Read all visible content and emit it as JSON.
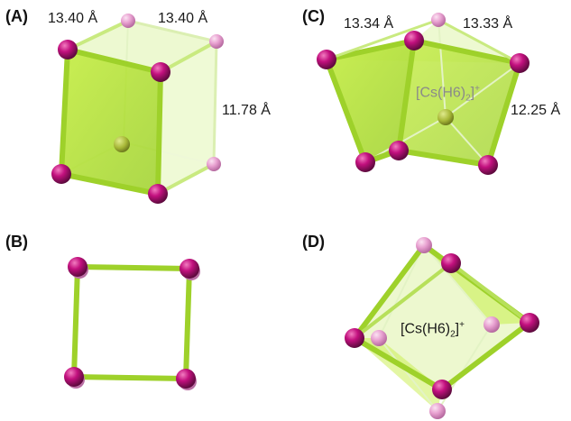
{
  "colors": {
    "fill": "#b5e22e",
    "edge": "#9ed12a",
    "edge_light": "#d8f3a0",
    "atom_front": "#c2107e",
    "atom_back": "#e8a0d0",
    "center_atom": "#a8b838",
    "formula_gray": "#8a8a8a",
    "formula_dark": "#1a1a1a"
  },
  "panels": [
    {
      "label": "(A)",
      "measurements": [
        "13.40 Å",
        "13.40 Å",
        "11.78 Å"
      ]
    },
    {
      "label": "(B)"
    },
    {
      "label": "(C)",
      "measurements": [
        "13.34 Å",
        "13.33 Å",
        "12.25 Å"
      ],
      "formula": {
        "base": "[Cs(H6)",
        "sub": "2",
        "close": "]",
        "sup": "+"
      }
    },
    {
      "label": "(D)",
      "formula": {
        "base": "[Cs(H6)",
        "sub": "2",
        "close": "]",
        "sup": "+"
      }
    }
  ]
}
